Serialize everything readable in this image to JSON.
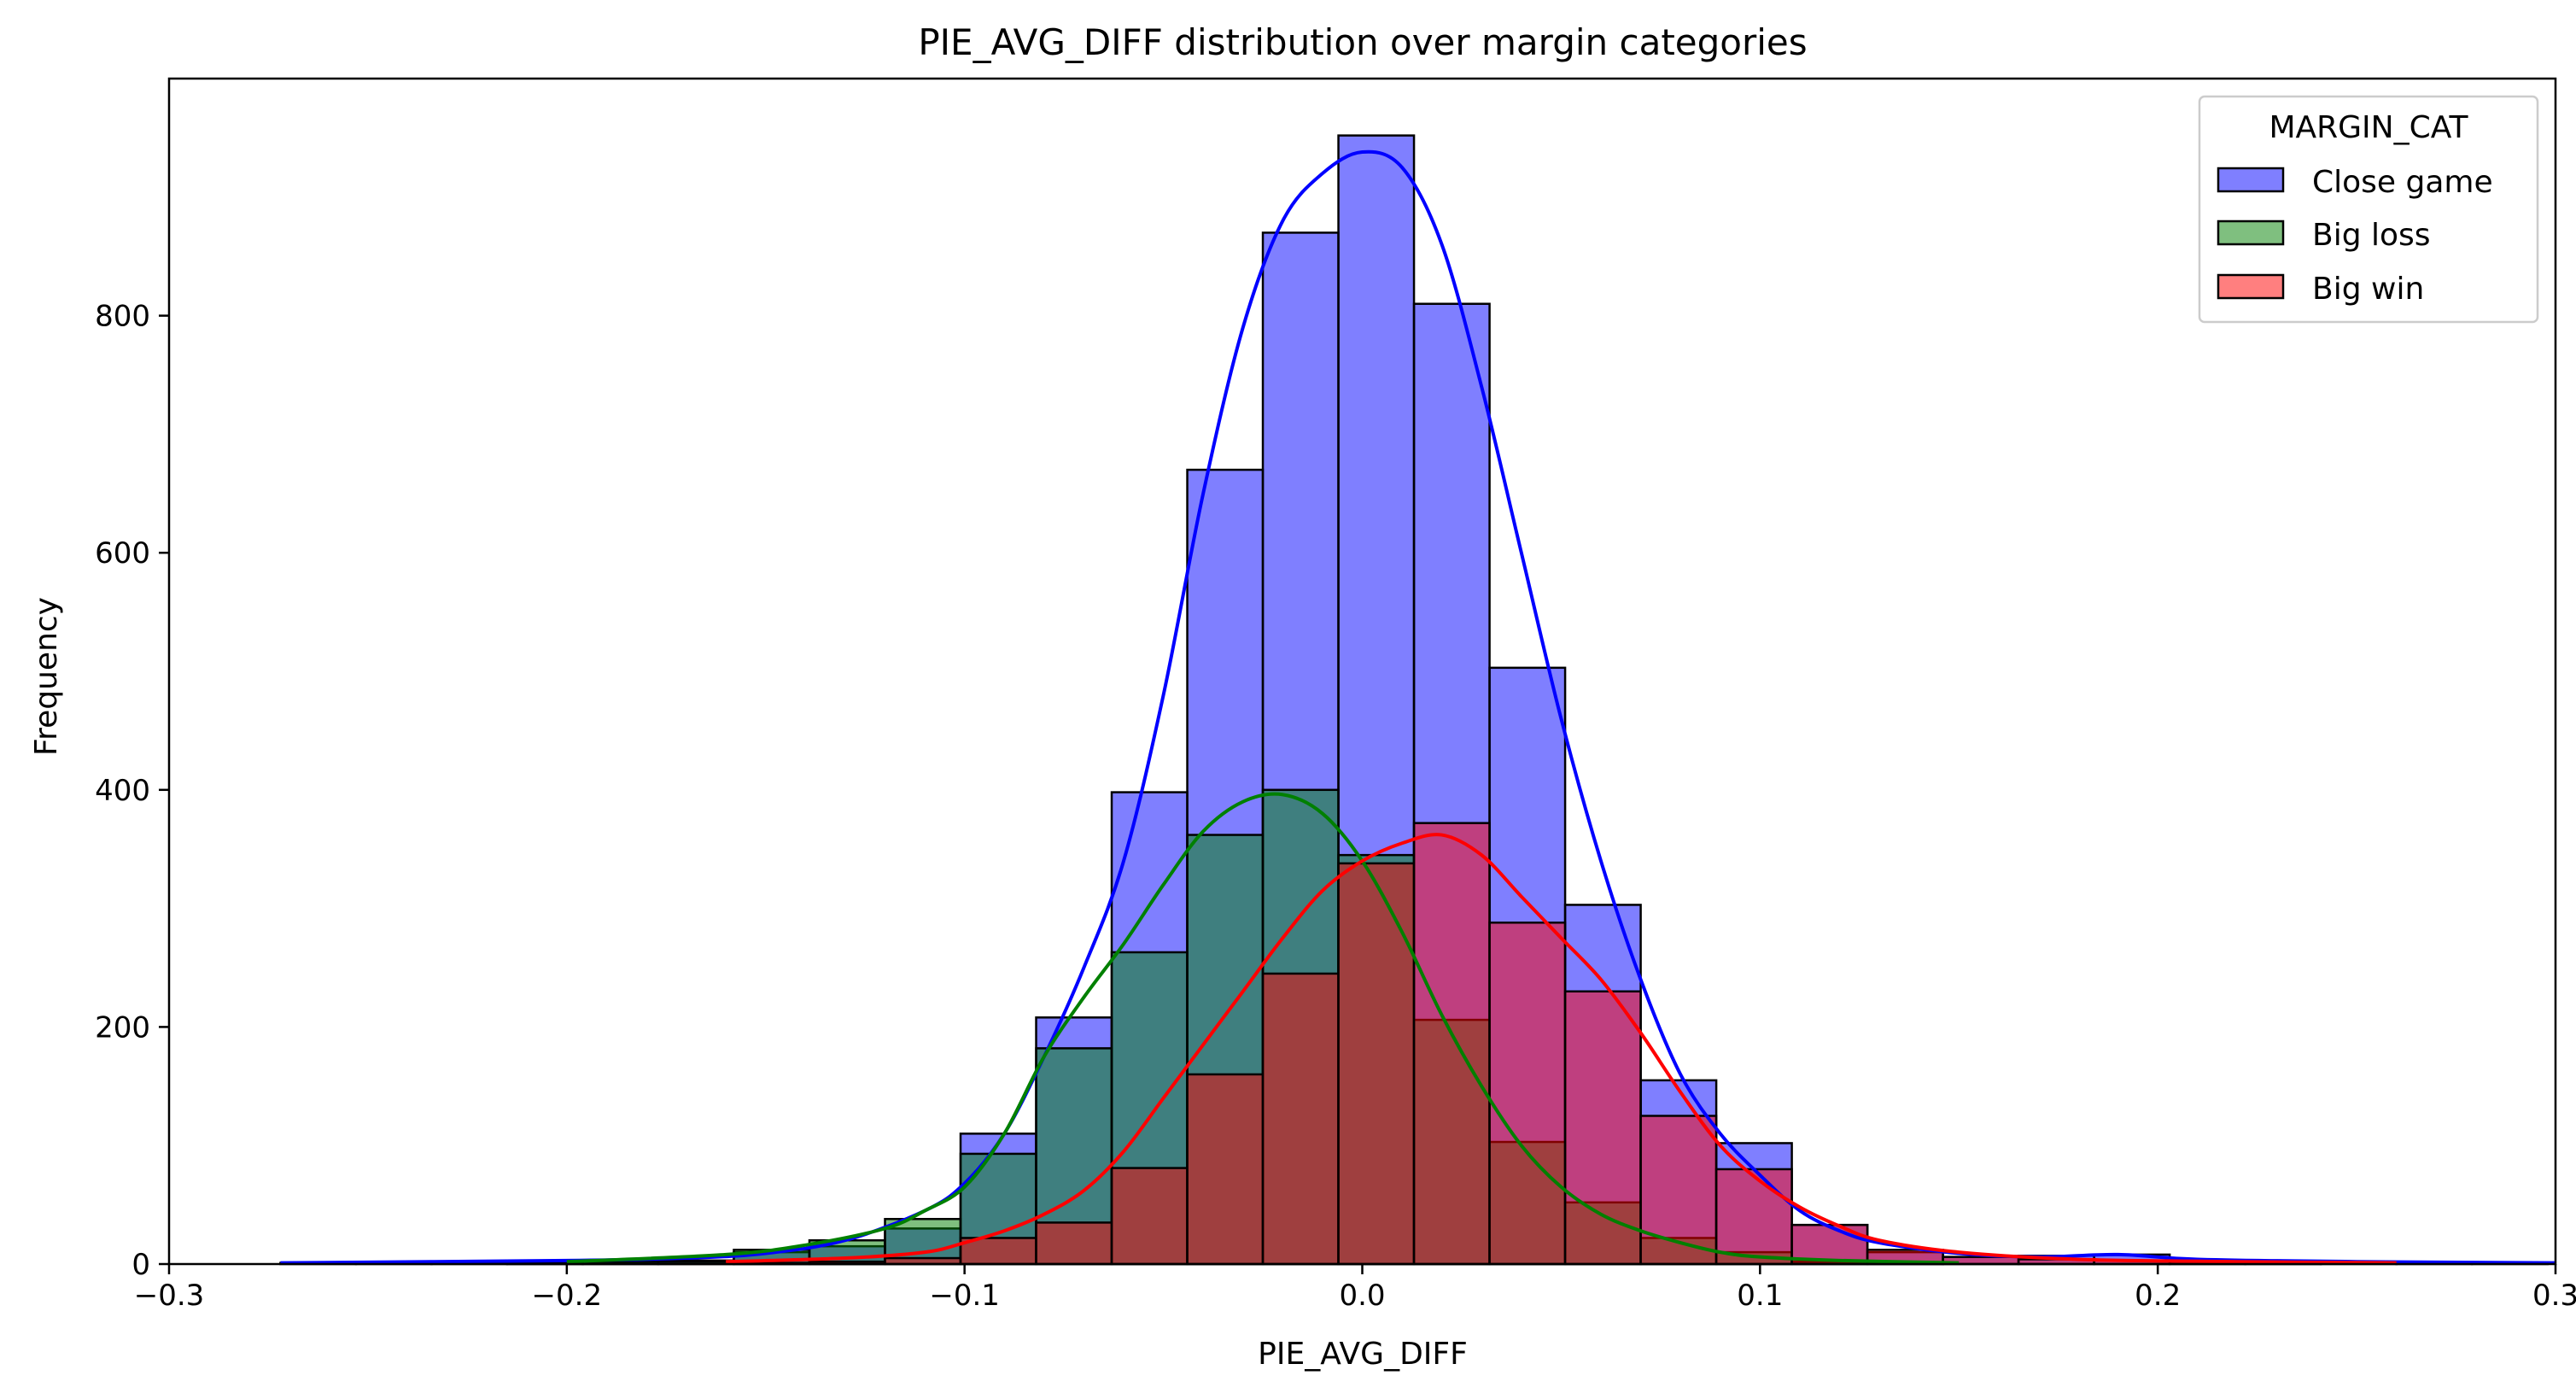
{
  "chart_data": {
    "type": "histogram",
    "title": "PIE_AVG_DIFF distribution over margin categories",
    "xlabel": "PIE_AVG_DIFF",
    "ylabel": "Frequency",
    "xlim": [
      -0.3,
      0.3
    ],
    "ylim": [
      0,
      1000
    ],
    "xticks": [
      -0.3,
      -0.2,
      -0.1,
      0.0,
      0.1,
      0.2,
      0.3
    ],
    "xtick_labels": [
      "−0.3",
      "−0.2",
      "−0.1",
      "0.0",
      "0.1",
      "0.2",
      "0.3"
    ],
    "yticks": [
      0,
      200,
      400,
      600,
      800
    ],
    "ytick_labels": [
      "0",
      "200",
      "400",
      "600",
      "800"
    ],
    "grid": false,
    "legend": {
      "title": "MARGIN_CAT",
      "placement": "top-right",
      "entries": [
        {
          "label": "Close game",
          "color": "#0000ff",
          "line": "#0000ff"
        },
        {
          "label": "Big loss",
          "color": "#008000",
          "line": "#008000"
        },
        {
          "label": "Big win",
          "color": "#ff0000",
          "line": "#ff0000"
        }
      ]
    },
    "bin_edges": [
      -0.272,
      -0.253,
      -0.234,
      -0.215,
      -0.196,
      -0.177,
      -0.158,
      -0.139,
      -0.12,
      -0.101,
      -0.082,
      -0.063,
      -0.044,
      -0.025,
      -0.006,
      0.013,
      0.032,
      0.051,
      0.07,
      0.089,
      0.108,
      0.127,
      0.146,
      0.165,
      0.184,
      0.203,
      0.222,
      0.241,
      0.26,
      0.279,
      0.298
    ],
    "series": [
      {
        "name": "Close game",
        "fill": "#0000ff",
        "line": "#0000ff",
        "counts": [
          1,
          1,
          1,
          2,
          2,
          3,
          10,
          15,
          30,
          110,
          208,
          398,
          670,
          870,
          952,
          810,
          503,
          303,
          155,
          102,
          33,
          10,
          6,
          7,
          8,
          3,
          2,
          1,
          1,
          1
        ],
        "kde": [
          [
            -0.272,
            1
          ],
          [
            -0.2,
            3
          ],
          [
            -0.17,
            5
          ],
          [
            -0.15,
            9
          ],
          [
            -0.13,
            20
          ],
          [
            -0.11,
            45
          ],
          [
            -0.1,
            68
          ],
          [
            -0.09,
            110
          ],
          [
            -0.08,
            175
          ],
          [
            -0.07,
            250
          ],
          [
            -0.06,
            340
          ],
          [
            -0.05,
            480
          ],
          [
            -0.04,
            650
          ],
          [
            -0.03,
            790
          ],
          [
            -0.02,
            880
          ],
          [
            -0.01,
            920
          ],
          [
            0.0,
            938
          ],
          [
            0.01,
            925
          ],
          [
            0.02,
            860
          ],
          [
            0.03,
            740
          ],
          [
            0.04,
            600
          ],
          [
            0.05,
            460
          ],
          [
            0.06,
            340
          ],
          [
            0.07,
            240
          ],
          [
            0.08,
            160
          ],
          [
            0.09,
            110
          ],
          [
            0.1,
            75
          ],
          [
            0.11,
            45
          ],
          [
            0.12,
            28
          ],
          [
            0.13,
            18
          ],
          [
            0.15,
            9
          ],
          [
            0.17,
            6
          ],
          [
            0.19,
            8
          ],
          [
            0.21,
            4
          ],
          [
            0.25,
            2
          ],
          [
            0.3,
            1
          ]
        ]
      },
      {
        "name": "Big loss",
        "fill": "#008000",
        "line": "#008000",
        "counts": [
          0,
          0,
          0,
          1,
          2,
          2,
          12,
          20,
          38,
          93,
          182,
          263,
          362,
          400,
          345,
          206,
          103,
          52,
          22,
          10,
          2,
          1,
          0,
          0,
          0,
          0,
          0,
          0,
          0,
          0
        ],
        "kde": [
          [
            -0.2,
            2
          ],
          [
            -0.16,
            8
          ],
          [
            -0.14,
            16
          ],
          [
            -0.12,
            30
          ],
          [
            -0.11,
            45
          ],
          [
            -0.1,
            65
          ],
          [
            -0.09,
            110
          ],
          [
            -0.08,
            175
          ],
          [
            -0.07,
            225
          ],
          [
            -0.06,
            270
          ],
          [
            -0.05,
            320
          ],
          [
            -0.04,
            365
          ],
          [
            -0.03,
            390
          ],
          [
            -0.02,
            396
          ],
          [
            -0.01,
            380
          ],
          [
            0.0,
            340
          ],
          [
            0.01,
            280
          ],
          [
            0.02,
            210
          ],
          [
            0.03,
            150
          ],
          [
            0.04,
            100
          ],
          [
            0.05,
            65
          ],
          [
            0.06,
            42
          ],
          [
            0.07,
            28
          ],
          [
            0.08,
            18
          ],
          [
            0.09,
            10
          ],
          [
            0.1,
            6
          ],
          [
            0.12,
            3
          ],
          [
            0.15,
            1
          ]
        ]
      },
      {
        "name": "Big win",
        "fill": "#ff0000",
        "line": "#ff0000",
        "counts": [
          0,
          0,
          0,
          0,
          0,
          0,
          1,
          2,
          5,
          22,
          35,
          81,
          160,
          245,
          338,
          372,
          288,
          230,
          125,
          80,
          33,
          12,
          6,
          4,
          3,
          2,
          1,
          0,
          0,
          0
        ],
        "kde": [
          [
            -0.16,
            2
          ],
          [
            -0.13,
            5
          ],
          [
            -0.11,
            10
          ],
          [
            -0.1,
            18
          ],
          [
            -0.09,
            28
          ],
          [
            -0.08,
            42
          ],
          [
            -0.07,
            62
          ],
          [
            -0.06,
            95
          ],
          [
            -0.05,
            140
          ],
          [
            -0.04,
            185
          ],
          [
            -0.03,
            230
          ],
          [
            -0.02,
            275
          ],
          [
            -0.01,
            315
          ],
          [
            0.0,
            340
          ],
          [
            0.01,
            355
          ],
          [
            0.02,
            362
          ],
          [
            0.03,
            345
          ],
          [
            0.04,
            310
          ],
          [
            0.05,
            275
          ],
          [
            0.06,
            240
          ],
          [
            0.07,
            195
          ],
          [
            0.08,
            145
          ],
          [
            0.09,
            100
          ],
          [
            0.1,
            70
          ],
          [
            0.11,
            48
          ],
          [
            0.12,
            32
          ],
          [
            0.13,
            20
          ],
          [
            0.15,
            10
          ],
          [
            0.18,
            4
          ],
          [
            0.22,
            2
          ],
          [
            0.26,
            1
          ]
        ]
      }
    ]
  }
}
